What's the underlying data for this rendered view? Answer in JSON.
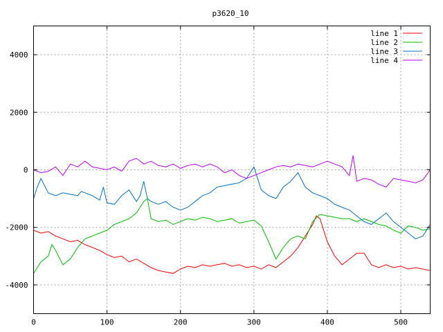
{
  "chart_data": {
    "type": "line",
    "title": "p3620_10",
    "xlabel": "",
    "ylabel": "",
    "xlim": [
      0,
      540
    ],
    "ylim": [
      -5000,
      5000
    ],
    "xticks": [
      0,
      100,
      200,
      300,
      400,
      500
    ],
    "yticks": [
      -4000,
      -2000,
      0,
      2000,
      4000
    ],
    "grid": true,
    "legend_position": "top-right",
    "series": [
      {
        "name": "line 1",
        "color": "#ff0000",
        "x": [
          0,
          10,
          20,
          30,
          40,
          50,
          60,
          70,
          80,
          90,
          100,
          110,
          120,
          130,
          140,
          150,
          160,
          170,
          180,
          190,
          200,
          210,
          220,
          230,
          240,
          250,
          260,
          270,
          280,
          290,
          300,
          310,
          320,
          330,
          340,
          350,
          360,
          370,
          380,
          385,
          390,
          400,
          410,
          420,
          430,
          440,
          450,
          460,
          470,
          480,
          490,
          500,
          510,
          520,
          530,
          540
        ],
        "y": [
          -2100,
          -2200,
          -2150,
          -2300,
          -2400,
          -2500,
          -2450,
          -2600,
          -2700,
          -2800,
          -2950,
          -3050,
          -3000,
          -3200,
          -3100,
          -3250,
          -3400,
          -3500,
          -3550,
          -3600,
          -3450,
          -3350,
          -3400,
          -3300,
          -3350,
          -3300,
          -3250,
          -3350,
          -3300,
          -3400,
          -3350,
          -3450,
          -3300,
          -3400,
          -3200,
          -3000,
          -2700,
          -2300,
          -1900,
          -1600,
          -1700,
          -2500,
          -3000,
          -3300,
          -3100,
          -2900,
          -2900,
          -3300,
          -3400,
          -3300,
          -3400,
          -3350,
          -3450,
          -3400,
          -3450,
          -3500
        ]
      },
      {
        "name": "line 2",
        "color": "#00c000",
        "x": [
          0,
          10,
          20,
          25,
          30,
          40,
          50,
          60,
          70,
          80,
          90,
          100,
          110,
          120,
          130,
          140,
          150,
          155,
          160,
          170,
          180,
          190,
          200,
          210,
          220,
          230,
          240,
          250,
          260,
          270,
          280,
          290,
          300,
          310,
          320,
          330,
          340,
          350,
          360,
          370,
          380,
          390,
          400,
          410,
          420,
          430,
          440,
          450,
          460,
          470,
          480,
          490,
          500,
          510,
          520,
          530,
          540
        ],
        "y": [
          -3600,
          -3200,
          -3000,
          -2600,
          -2800,
          -3300,
          -3100,
          -2700,
          -2400,
          -2300,
          -2200,
          -2100,
          -1900,
          -1800,
          -1700,
          -1500,
          -1100,
          -1000,
          -1700,
          -1800,
          -1750,
          -1900,
          -1800,
          -1700,
          -1750,
          -1650,
          -1700,
          -1800,
          -1750,
          -1700,
          -1850,
          -1800,
          -1750,
          -1950,
          -2500,
          -3100,
          -2700,
          -2400,
          -2300,
          -2400,
          -1800,
          -1550,
          -1600,
          -1650,
          -1700,
          -1700,
          -1800,
          -1700,
          -1800,
          -1900,
          -1950,
          -2100,
          -2200,
          -1950,
          -2000,
          -2100,
          -2050
        ]
      },
      {
        "name": "line 3",
        "color": "#0070d0",
        "x": [
          0,
          5,
          10,
          20,
          30,
          40,
          50,
          60,
          65,
          70,
          80,
          90,
          95,
          100,
          110,
          120,
          130,
          140,
          145,
          150,
          155,
          160,
          170,
          180,
          190,
          200,
          210,
          220,
          230,
          240,
          250,
          260,
          270,
          280,
          290,
          300,
          310,
          320,
          330,
          340,
          350,
          360,
          370,
          380,
          390,
          400,
          410,
          420,
          430,
          440,
          450,
          460,
          470,
          480,
          490,
          500,
          510,
          520,
          530,
          540
        ],
        "y": [
          -1000,
          -600,
          -300,
          -800,
          -900,
          -800,
          -850,
          -900,
          -750,
          -800,
          -900,
          -1050,
          -600,
          -1150,
          -1200,
          -900,
          -700,
          -1100,
          -900,
          -400,
          -1000,
          -1100,
          -1200,
          -1100,
          -1300,
          -1400,
          -1300,
          -1100,
          -900,
          -800,
          -600,
          -550,
          -500,
          -450,
          -300,
          100,
          -700,
          -900,
          -1000,
          -600,
          -400,
          -100,
          -600,
          -800,
          -900,
          -1000,
          -1200,
          -1300,
          -1400,
          -1600,
          -1800,
          -1900,
          -1700,
          -1500,
          -1800,
          -2000,
          -2200,
          -2400,
          -2300,
          -1900
        ]
      },
      {
        "name": "line 4",
        "color": "#c000ff",
        "x": [
          0,
          10,
          20,
          30,
          40,
          50,
          60,
          70,
          80,
          90,
          100,
          110,
          120,
          130,
          140,
          150,
          160,
          170,
          180,
          190,
          200,
          210,
          220,
          230,
          240,
          250,
          260,
          270,
          280,
          290,
          300,
          310,
          320,
          330,
          340,
          350,
          360,
          370,
          380,
          390,
          400,
          410,
          420,
          430,
          435,
          440,
          450,
          460,
          470,
          480,
          490,
          500,
          510,
          520,
          530,
          540
        ],
        "y": [
          0,
          -100,
          -50,
          100,
          -200,
          200,
          100,
          300,
          100,
          50,
          0,
          100,
          -50,
          300,
          400,
          200,
          300,
          150,
          100,
          200,
          50,
          150,
          200,
          100,
          200,
          100,
          -100,
          0,
          -200,
          -300,
          -200,
          -100,
          0,
          100,
          150,
          100,
          200,
          150,
          100,
          200,
          300,
          200,
          100,
          -200,
          500,
          -400,
          -300,
          -350,
          -500,
          -600,
          -300,
          -350,
          -400,
          -450,
          -350,
          0
        ]
      }
    ]
  }
}
